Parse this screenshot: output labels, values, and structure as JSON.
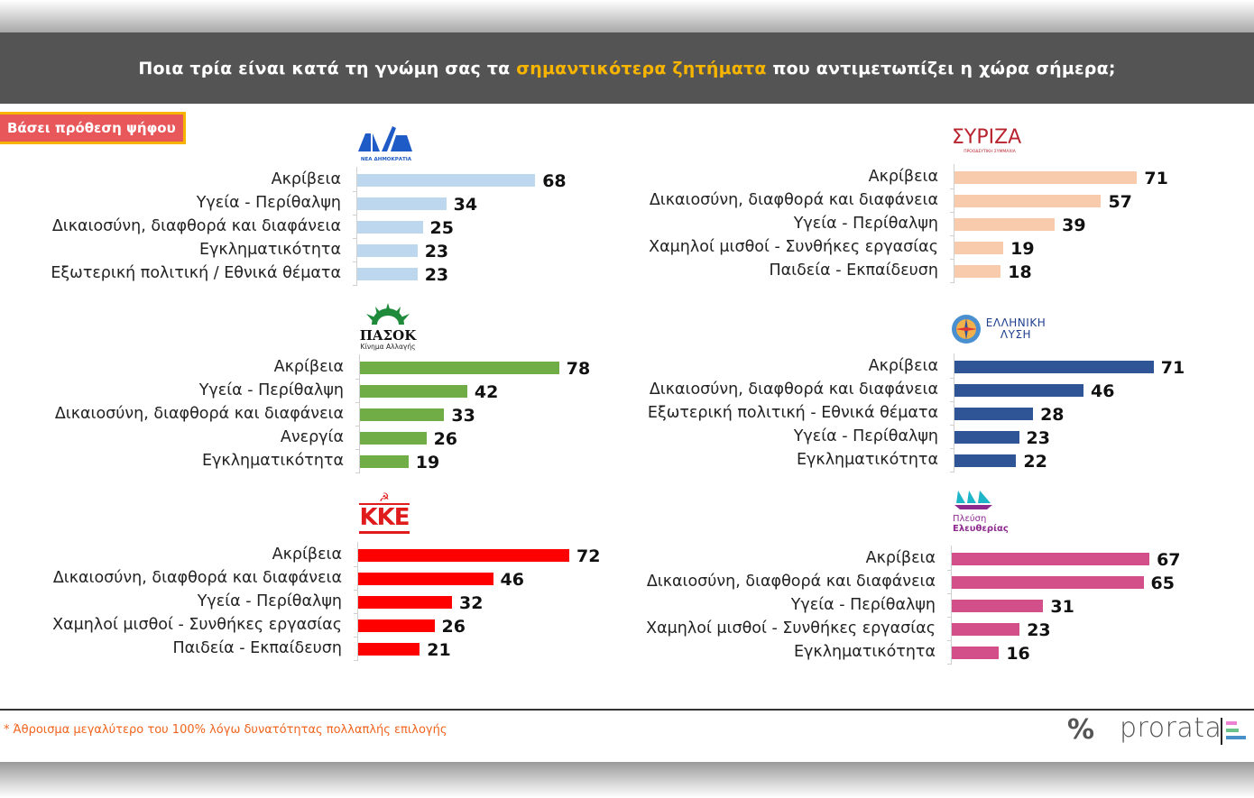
{
  "header": {
    "title_before": "Ποια τρία είναι κατά τη γνώμη σας τα ",
    "title_highlight": "σημαντικότερα ζητήματα",
    "title_after": " που αντιμετωπίζει η χώρα σήμερα;"
  },
  "badge": "Βάσει πρόθεση ψήφου",
  "footnote": "* Άθροισμα μεγαλύτερο του 100% λόγω δυνατότητας πολλαπλής επιλογής",
  "brand": {
    "symbol": "%",
    "name": "prorata"
  },
  "logos": {
    "nd": {
      "mark": "ΝΔ",
      "sub": "ΝΕΑ ΔΗΜΟΚΡΑΤΙΑ"
    },
    "syriza": {
      "mark": "ΣΥΡΙΖΑ",
      "sub": "ΠΡΟΟΔΕΥΤΙΚΗ ΣΥΜΜΑΧΙΑ"
    },
    "pasok": {
      "mark": "ΠΑΣΟΚ",
      "sub": "Κίνημα Αλλαγής"
    },
    "el": {
      "line1": "ΕΛΛΗΝΙΚΗ",
      "line2": "ΛΥΣΗ"
    },
    "kke": {
      "mark": "ΚΚΕ"
    },
    "plefsi": {
      "line1": "Πλεύση",
      "line2": "Ελευθερίας"
    }
  },
  "chart_data": [
    {
      "type": "bar",
      "party": "Νέα Δημοκρατία",
      "color": "#bdd7ee",
      "categories": [
        "Ακρίβεια",
        "Υγεία - Περίθαλψη",
        "Δικαιοσύνη, διαφθορά και διαφάνεια",
        "Εγκληματικότητα",
        "Εξωτερική πολιτική / Εθνικά θέματα"
      ],
      "values": [
        68,
        34,
        25,
        23,
        23
      ]
    },
    {
      "type": "bar",
      "party": "ΣΥΡΙΖΑ",
      "color": "#f8cbad",
      "categories": [
        "Ακρίβεια",
        "Δικαιοσύνη, διαφθορά και διαφάνεια",
        "Υγεία - Περίθαλψη",
        "Χαμηλοί μισθοί - Συνθήκες εργασίας",
        "Παιδεία - Εκπαίδευση"
      ],
      "values": [
        71,
        57,
        39,
        19,
        18
      ]
    },
    {
      "type": "bar",
      "party": "ΠΑΣΟΚ",
      "color": "#70ad47",
      "categories": [
        "Ακρίβεια",
        "Υγεία - Περίθαλψη",
        "Δικαιοσύνη, διαφθορά και διαφάνεια",
        "Ανεργία",
        "Εγκληματικότητα"
      ],
      "values": [
        78,
        42,
        33,
        26,
        19
      ]
    },
    {
      "type": "bar",
      "party": "Ελληνική Λύση",
      "color": "#2f5597",
      "categories": [
        "Ακρίβεια",
        "Δικαιοσύνη, διαφθορά και διαφάνεια",
        "Εξωτερική πολιτική - Εθνικά θέματα",
        "Υγεία - Περίθαλψη",
        "Εγκληματικότητα"
      ],
      "values": [
        71,
        46,
        28,
        23,
        22
      ]
    },
    {
      "type": "bar",
      "party": "ΚΚΕ",
      "color": "#ff0000",
      "categories": [
        "Ακρίβεια",
        "Δικαιοσύνη, διαφθορά και διαφάνεια",
        "Υγεία - Περίθαλψη",
        "Χαμηλοί μισθοί - Συνθήκες εργασίας",
        "Παιδεία - Εκπαίδευση"
      ],
      "values": [
        72,
        46,
        32,
        26,
        21
      ]
    },
    {
      "type": "bar",
      "party": "Πλεύση Ελευθερίας",
      "color": "#d24f8a",
      "categories": [
        "Ακρίβεια",
        "Δικαιοσύνη, διαφθορά και διαφάνεια",
        "Υγεία - Περίθαλψη",
        "Χαμηλοί μισθοί - Συνθήκες εργασίας",
        "Εγκληματικότητα"
      ],
      "values": [
        67,
        65,
        31,
        23,
        16
      ]
    }
  ]
}
